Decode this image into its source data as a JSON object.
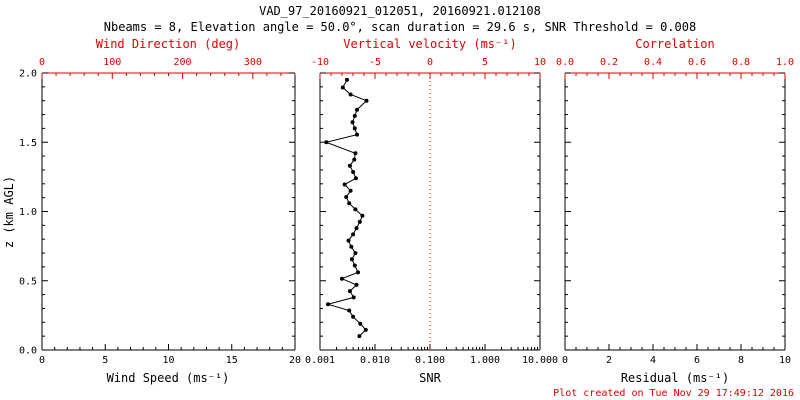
{
  "header": {
    "title": "VAD_97_20160921_012051, 20160921.012108",
    "subtitle": "Nbeams = 8, Elevation angle = 50.0°, scan duration = 29.6 s, SNR Threshold = 0.008"
  },
  "footer": {
    "created": "Plot created on Tue Nov 29 17:49:12 2016"
  },
  "colors": {
    "axis": "#000000",
    "secondary_axis": "#dd0000",
    "data": "#000000",
    "reference_line": "#dd0000",
    "background": "#ffffff"
  },
  "yaxis": {
    "label": "z (km AGL)",
    "lim": [
      0,
      2
    ],
    "tick_values": [
      0,
      0.5,
      1,
      1.5,
      2
    ],
    "tick_labels": [
      "0.0",
      "0.5",
      "1.0",
      "1.5",
      "2.0"
    ],
    "minor_div": 5
  },
  "chart_data": [
    {
      "type": "line",
      "name": "wind-speed",
      "xlabel": "Wind Speed (ms⁻¹)",
      "ylabel": "z (km AGL)",
      "ylim": [
        0,
        2
      ],
      "xscale": "linear",
      "xlim": [
        0,
        20
      ],
      "xticks": [
        0,
        5,
        10,
        15,
        20
      ],
      "xtick_labels": [
        "0",
        "5",
        "10",
        "15",
        "20"
      ],
      "minor_div": 5,
      "top_axis": {
        "label": "Wind Direction (deg)",
        "lim": [
          0,
          360
        ],
        "ticks": [
          0,
          100,
          200,
          300
        ],
        "tick_labels": [
          "0",
          "100",
          "200",
          "300"
        ],
        "minor_div": 5
      },
      "series": []
    },
    {
      "type": "scatter",
      "name": "snr",
      "xlabel": "SNR",
      "ylabel": "z (km AGL)",
      "ylim": [
        0,
        2
      ],
      "xscale": "log",
      "xlim": [
        0.001,
        10
      ],
      "xticks": [
        0.001,
        0.01,
        0.1,
        1,
        10
      ],
      "xtick_labels": [
        "0.001",
        "0.010",
        "0.100",
        "1.000",
        "10.000"
      ],
      "top_axis": {
        "label": "Vertical velocity (ms⁻¹)",
        "lim": [
          -10,
          10
        ],
        "ticks": [
          -10,
          -5,
          0,
          5,
          10
        ],
        "tick_labels": [
          "-10",
          "-5",
          "0",
          "5",
          "10"
        ],
        "minor_div": 5
      },
      "reference_line_x": 0.1,
      "series": [
        {
          "name": "snr-profile",
          "marker": "circle",
          "points": [
            [
              0.0052,
              0.1
            ],
            [
              0.0068,
              0.145
            ],
            [
              0.0054,
              0.19
            ],
            [
              0.004,
              0.24
            ],
            [
              0.0034,
              0.285
            ],
            [
              0.0014,
              0.33
            ],
            [
              0.0041,
              0.38
            ],
            [
              0.0035,
              0.425
            ],
            [
              0.0046,
              0.47
            ],
            [
              0.0025,
              0.515
            ],
            [
              0.0049,
              0.56
            ],
            [
              0.0043,
              0.61
            ],
            [
              0.0038,
              0.655
            ],
            [
              0.0044,
              0.7
            ],
            [
              0.0037,
              0.745
            ],
            [
              0.0033,
              0.79
            ],
            [
              0.004,
              0.835
            ],
            [
              0.0046,
              0.88
            ],
            [
              0.0053,
              0.925
            ],
            [
              0.0059,
              0.97
            ],
            [
              0.0044,
              1.015
            ],
            [
              0.0034,
              1.06
            ],
            [
              0.003,
              1.105
            ],
            [
              0.0036,
              1.15
            ],
            [
              0.0028,
              1.195
            ],
            [
              0.0045,
              1.24
            ],
            [
              0.004,
              1.285
            ],
            [
              0.0035,
              1.33
            ],
            [
              0.0042,
              1.375
            ],
            [
              0.0044,
              1.42
            ],
            [
              0.0013,
              1.5
            ],
            [
              0.0047,
              1.555
            ],
            [
              0.0043,
              1.6
            ],
            [
              0.0039,
              1.645
            ],
            [
              0.0043,
              1.69
            ],
            [
              0.0047,
              1.735
            ],
            [
              0.007,
              1.8
            ],
            [
              0.0036,
              1.845
            ],
            [
              0.0026,
              1.895
            ],
            [
              0.0031,
              1.95
            ]
          ]
        }
      ]
    },
    {
      "type": "line",
      "name": "residual",
      "xlabel": "Residual (ms⁻¹)",
      "ylabel": "z (km AGL)",
      "ylim": [
        0,
        2
      ],
      "xscale": "linear",
      "xlim": [
        0,
        10
      ],
      "xticks": [
        0,
        2,
        4,
        6,
        8,
        10
      ],
      "xtick_labels": [
        "0",
        "2",
        "4",
        "6",
        "8",
        "10"
      ],
      "minor_div": 4,
      "top_axis": {
        "label": "Correlation",
        "lim": [
          0,
          1
        ],
        "ticks": [
          0,
          0.2,
          0.4,
          0.6,
          0.8,
          1.0
        ],
        "tick_labels": [
          "0.0",
          "0.2",
          "0.4",
          "0.6",
          "0.8",
          "1.0"
        ],
        "minor_div": 4
      },
      "series": []
    }
  ]
}
